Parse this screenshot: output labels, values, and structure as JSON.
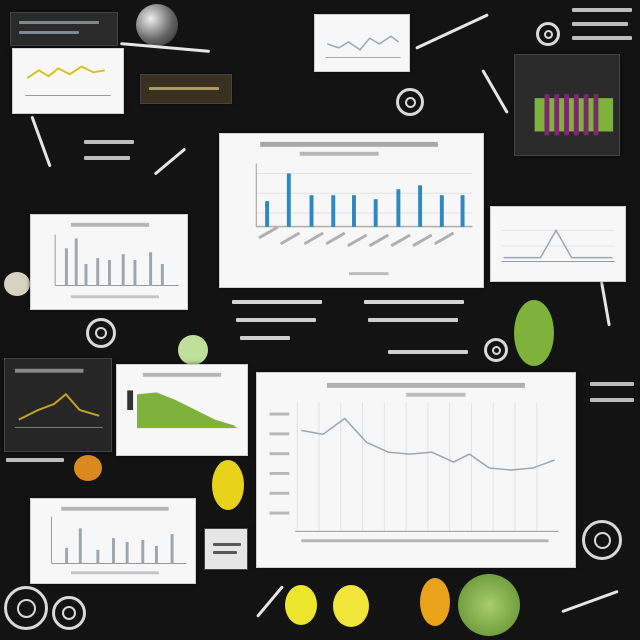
{
  "image": {
    "kind": "abstract collage of blurred chart thumbnails on a dark background",
    "text": []
  },
  "colors": {
    "background": "#141313",
    "panel": "#f7f7f7",
    "dark_panel": "#2a2a2a",
    "bar_blue": "#2e88c2",
    "line_gray": "#9da6ad",
    "accent_green": "#7fb23a",
    "accent_yellow": "#e8d21a",
    "accent_purple": "#7a2a6b"
  },
  "decor_icons": [
    "swirl-icon",
    "antler-icon",
    "leaf-icon",
    "skull-icon",
    "lightbulb-icon"
  ]
}
